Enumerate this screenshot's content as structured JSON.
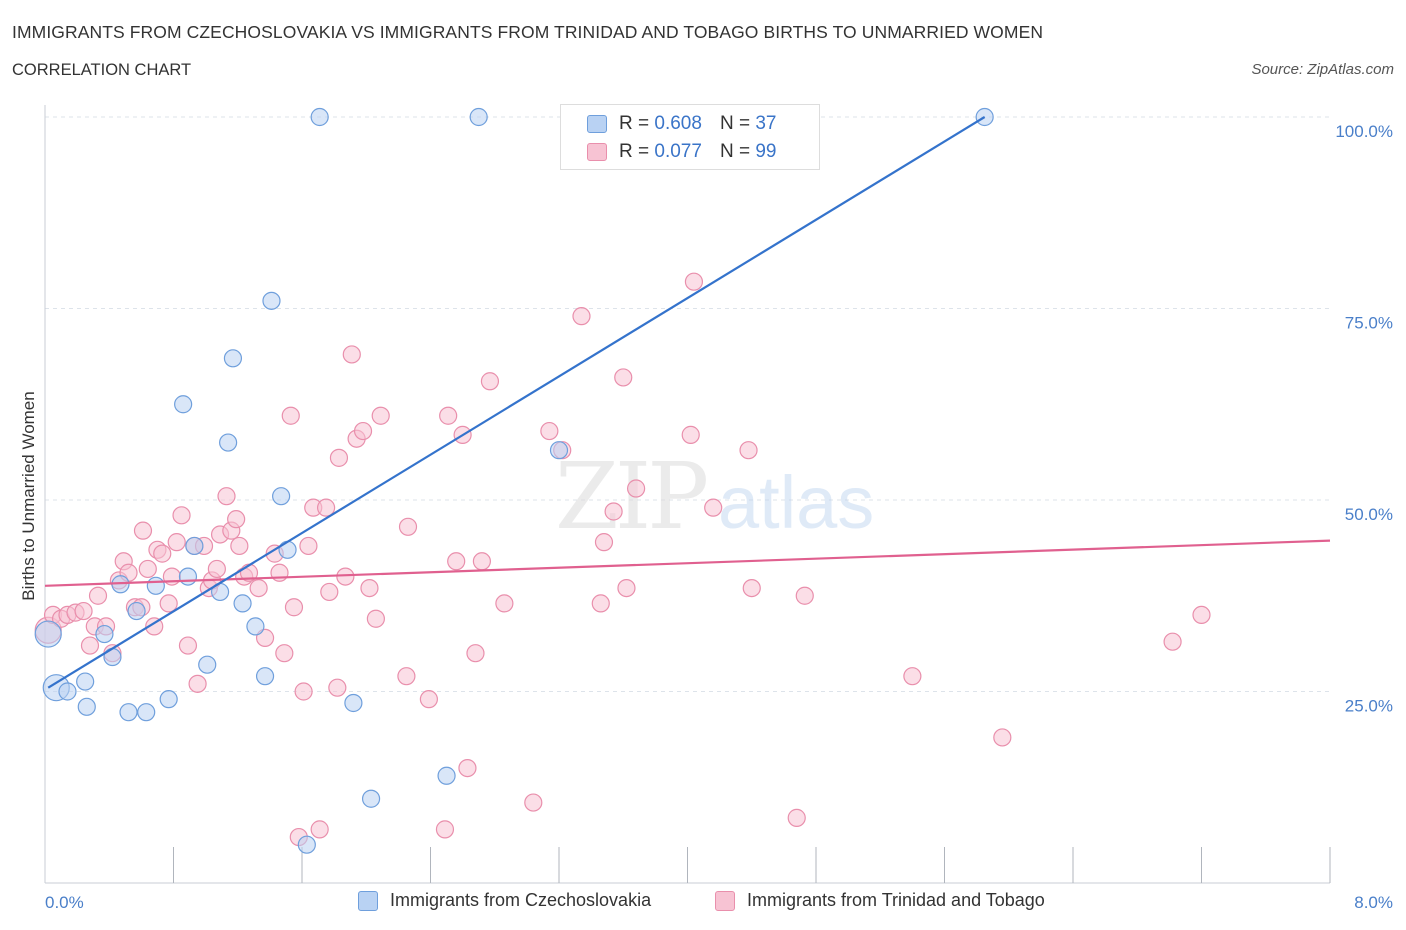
{
  "header": {
    "title": "IMMIGRANTS FROM CZECHOSLOVAKIA VS IMMIGRANTS FROM TRINIDAD AND TOBAGO BIRTHS TO UNMARRIED WOMEN",
    "subtitle": "CORRELATION CHART",
    "source": "Source: ZipAtlas.com"
  },
  "legend": {
    "r_label": "R =",
    "n_label": "N =",
    "series1": {
      "r": "0.608",
      "n": "37"
    },
    "series2": {
      "r": "0.077",
      "n": "99"
    }
  },
  "watermark": {
    "zip": "ZIP",
    "atlas": "atlas"
  },
  "colors": {
    "blue_fill": "#b9d2f3",
    "blue_stroke": "#6f9fdc",
    "blue_line": "#3473cc",
    "pink_fill": "#f7c3d3",
    "pink_stroke": "#e98fac",
    "pink_line": "#e0608f",
    "tick_text": "#4a7fc9",
    "grid": "#dde3ea"
  },
  "chart_data": {
    "type": "scatter",
    "title": "IMMIGRANTS FROM CZECHOSLOVAKIA VS IMMIGRANTS FROM TRINIDAD AND TOBAGO BIRTHS TO UNMARRIED WOMEN",
    "xlabel": "",
    "ylabel": "Births to Unmarried Women",
    "xlim": [
      0,
      8
    ],
    "ylim": [
      0,
      100
    ],
    "x_tick_labels": [
      "0.0%",
      "8.0%"
    ],
    "y_tick_labels": [
      "100.0%",
      "75.0%",
      "50.0%",
      "25.0%"
    ],
    "y_ticks": [
      100,
      75,
      50,
      25
    ],
    "grid": true,
    "legend_position": "top-center",
    "series": [
      {
        "name": "Immigrants from Czechoslovakia",
        "color": "#6f9fdc",
        "R": 0.608,
        "N": 37,
        "trend": {
          "x": [
            0.02,
            5.85
          ],
          "y": [
            25.5,
            100.0
          ]
        },
        "points": [
          {
            "x": 0.02,
            "y": 32.5,
            "big": true
          },
          {
            "x": 0.07,
            "y": 25.5,
            "big": true
          },
          {
            "x": 0.14,
            "y": 25.0
          },
          {
            "x": 0.25,
            "y": 26.3
          },
          {
            "x": 0.26,
            "y": 23.0
          },
          {
            "x": 0.37,
            "y": 32.5
          },
          {
            "x": 0.42,
            "y": 29.5
          },
          {
            "x": 0.47,
            "y": 39.0
          },
          {
            "x": 0.52,
            "y": 22.3
          },
          {
            "x": 0.57,
            "y": 35.5
          },
          {
            "x": 0.63,
            "y": 22.3
          },
          {
            "x": 0.69,
            "y": 38.8
          },
          {
            "x": 0.77,
            "y": 24.0
          },
          {
            "x": 0.86,
            "y": 62.5
          },
          {
            "x": 0.89,
            "y": 40.0
          },
          {
            "x": 0.93,
            "y": 44.0
          },
          {
            "x": 1.01,
            "y": 28.5
          },
          {
            "x": 1.09,
            "y": 38.0
          },
          {
            "x": 1.14,
            "y": 57.5
          },
          {
            "x": 1.17,
            "y": 68.5
          },
          {
            "x": 1.23,
            "y": 36.5
          },
          {
            "x": 1.31,
            "y": 33.5
          },
          {
            "x": 1.37,
            "y": 27.0
          },
          {
            "x": 1.41,
            "y": 76.0
          },
          {
            "x": 1.47,
            "y": 50.5
          },
          {
            "x": 1.51,
            "y": 43.5
          },
          {
            "x": 1.63,
            "y": 5.0
          },
          {
            "x": 1.71,
            "y": 100.0
          },
          {
            "x": 1.92,
            "y": 23.5
          },
          {
            "x": 2.03,
            "y": 11.0
          },
          {
            "x": 2.5,
            "y": 14.0
          },
          {
            "x": 2.7,
            "y": 100.0
          },
          {
            "x": 3.2,
            "y": 56.5
          },
          {
            "x": 5.85,
            "y": 100.0
          }
        ]
      },
      {
        "name": "Immigrants from Trinidad and Tobago",
        "color": "#e98fac",
        "R": 0.077,
        "N": 99,
        "trend": {
          "x": [
            0.0,
            8.0
          ],
          "y": [
            38.8,
            44.7
          ]
        },
        "points": [
          {
            "x": 0.02,
            "y": 33.0,
            "big": true
          },
          {
            "x": 0.05,
            "y": 35.0
          },
          {
            "x": 0.1,
            "y": 34.5
          },
          {
            "x": 0.14,
            "y": 35.0
          },
          {
            "x": 0.19,
            "y": 35.3
          },
          {
            "x": 0.24,
            "y": 35.5
          },
          {
            "x": 0.28,
            "y": 31.0
          },
          {
            "x": 0.31,
            "y": 33.5
          },
          {
            "x": 0.33,
            "y": 37.5
          },
          {
            "x": 0.38,
            "y": 33.5
          },
          {
            "x": 0.42,
            "y": 30.0
          },
          {
            "x": 0.46,
            "y": 39.5
          },
          {
            "x": 0.49,
            "y": 42.0
          },
          {
            "x": 0.52,
            "y": 40.5
          },
          {
            "x": 0.56,
            "y": 36.0
          },
          {
            "x": 0.6,
            "y": 36.0
          },
          {
            "x": 0.61,
            "y": 46.0
          },
          {
            "x": 0.64,
            "y": 41.0
          },
          {
            "x": 0.68,
            "y": 33.5
          },
          {
            "x": 0.7,
            "y": 43.5
          },
          {
            "x": 0.73,
            "y": 43.0
          },
          {
            "x": 0.77,
            "y": 36.5
          },
          {
            "x": 0.79,
            "y": 40.0
          },
          {
            "x": 0.82,
            "y": 44.5
          },
          {
            "x": 0.85,
            "y": 48.0
          },
          {
            "x": 0.89,
            "y": 31.0
          },
          {
            "x": 0.93,
            "y": 44.0
          },
          {
            "x": 0.95,
            "y": 26.0
          },
          {
            "x": 0.99,
            "y": 44.0
          },
          {
            "x": 1.02,
            "y": 38.5
          },
          {
            "x": 1.04,
            "y": 39.5
          },
          {
            "x": 1.07,
            "y": 41.0
          },
          {
            "x": 1.09,
            "y": 45.5
          },
          {
            "x": 1.13,
            "y": 50.5
          },
          {
            "x": 1.16,
            "y": 46.0
          },
          {
            "x": 1.19,
            "y": 47.5
          },
          {
            "x": 1.21,
            "y": 44.0
          },
          {
            "x": 1.24,
            "y": 40.0
          },
          {
            "x": 1.27,
            "y": 40.5
          },
          {
            "x": 1.33,
            "y": 38.5
          },
          {
            "x": 1.37,
            "y": 32.0
          },
          {
            "x": 1.43,
            "y": 43.0
          },
          {
            "x": 1.46,
            "y": 40.5
          },
          {
            "x": 1.49,
            "y": 30.0
          },
          {
            "x": 1.53,
            "y": 61.0
          },
          {
            "x": 1.55,
            "y": 36.0
          },
          {
            "x": 1.58,
            "y": 6.0
          },
          {
            "x": 1.61,
            "y": 25.0
          },
          {
            "x": 1.64,
            "y": 44.0
          },
          {
            "x": 1.67,
            "y": 49.0
          },
          {
            "x": 1.71,
            "y": 7.0
          },
          {
            "x": 1.75,
            "y": 49.0
          },
          {
            "x": 1.77,
            "y": 38.0
          },
          {
            "x": 1.82,
            "y": 25.5
          },
          {
            "x": 1.83,
            "y": 55.5
          },
          {
            "x": 1.87,
            "y": 40.0
          },
          {
            "x": 1.91,
            "y": 69.0
          },
          {
            "x": 1.94,
            "y": 58.0
          },
          {
            "x": 1.98,
            "y": 59.0
          },
          {
            "x": 2.02,
            "y": 38.5
          },
          {
            "x": 2.06,
            "y": 34.5
          },
          {
            "x": 2.09,
            "y": 61.0
          },
          {
            "x": 2.25,
            "y": 27.0
          },
          {
            "x": 2.26,
            "y": 46.5
          },
          {
            "x": 2.39,
            "y": 24.0
          },
          {
            "x": 2.49,
            "y": 7.0
          },
          {
            "x": 2.51,
            "y": 61.0
          },
          {
            "x": 2.56,
            "y": 42.0
          },
          {
            "x": 2.6,
            "y": 58.5
          },
          {
            "x": 2.63,
            "y": 15.0
          },
          {
            "x": 2.68,
            "y": 30.0
          },
          {
            "x": 2.72,
            "y": 42.0
          },
          {
            "x": 2.77,
            "y": 65.5
          },
          {
            "x": 2.86,
            "y": 36.5
          },
          {
            "x": 3.04,
            "y": 10.5
          },
          {
            "x": 3.14,
            "y": 59.0
          },
          {
            "x": 3.22,
            "y": 56.5
          },
          {
            "x": 3.34,
            "y": 74.0
          },
          {
            "x": 3.46,
            "y": 36.5
          },
          {
            "x": 3.48,
            "y": 44.5
          },
          {
            "x": 3.54,
            "y": 48.5
          },
          {
            "x": 3.6,
            "y": 66.0
          },
          {
            "x": 3.62,
            "y": 38.5
          },
          {
            "x": 3.68,
            "y": 51.5
          },
          {
            "x": 4.02,
            "y": 58.5
          },
          {
            "x": 4.04,
            "y": 78.5
          },
          {
            "x": 4.16,
            "y": 49.0
          },
          {
            "x": 4.38,
            "y": 56.5
          },
          {
            "x": 4.4,
            "y": 38.5
          },
          {
            "x": 4.68,
            "y": 8.5
          },
          {
            "x": 4.73,
            "y": 37.5
          },
          {
            "x": 5.4,
            "y": 27.0
          },
          {
            "x": 5.96,
            "y": 19.0
          },
          {
            "x": 7.02,
            "y": 31.5
          },
          {
            "x": 7.2,
            "y": 35.0
          }
        ]
      }
    ]
  }
}
